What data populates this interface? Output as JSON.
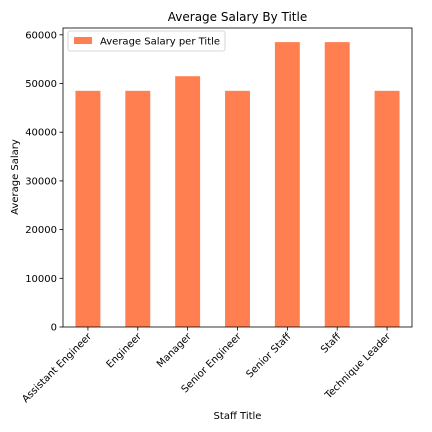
{
  "chart_data": {
    "type": "bar",
    "title": "Average Salary By Title",
    "xlabel": "Staff Title",
    "ylabel": "Average Salary",
    "categories": [
      "Assistant Engineer",
      "Engineer",
      "Manager",
      "Senior Engineer",
      "Senior Staff",
      "Staff",
      "Technique Leader"
    ],
    "series": [
      {
        "name": "Average Salary per Title",
        "values": [
          48500,
          48500,
          51500,
          48500,
          58500,
          58500,
          48500
        ],
        "color": "#ff7f50"
      }
    ],
    "ylim": [
      0,
      61400
    ],
    "yticks": [
      0,
      10000,
      20000,
      30000,
      40000,
      50000,
      60000
    ],
    "grid": false,
    "legend_position": "top-left"
  }
}
